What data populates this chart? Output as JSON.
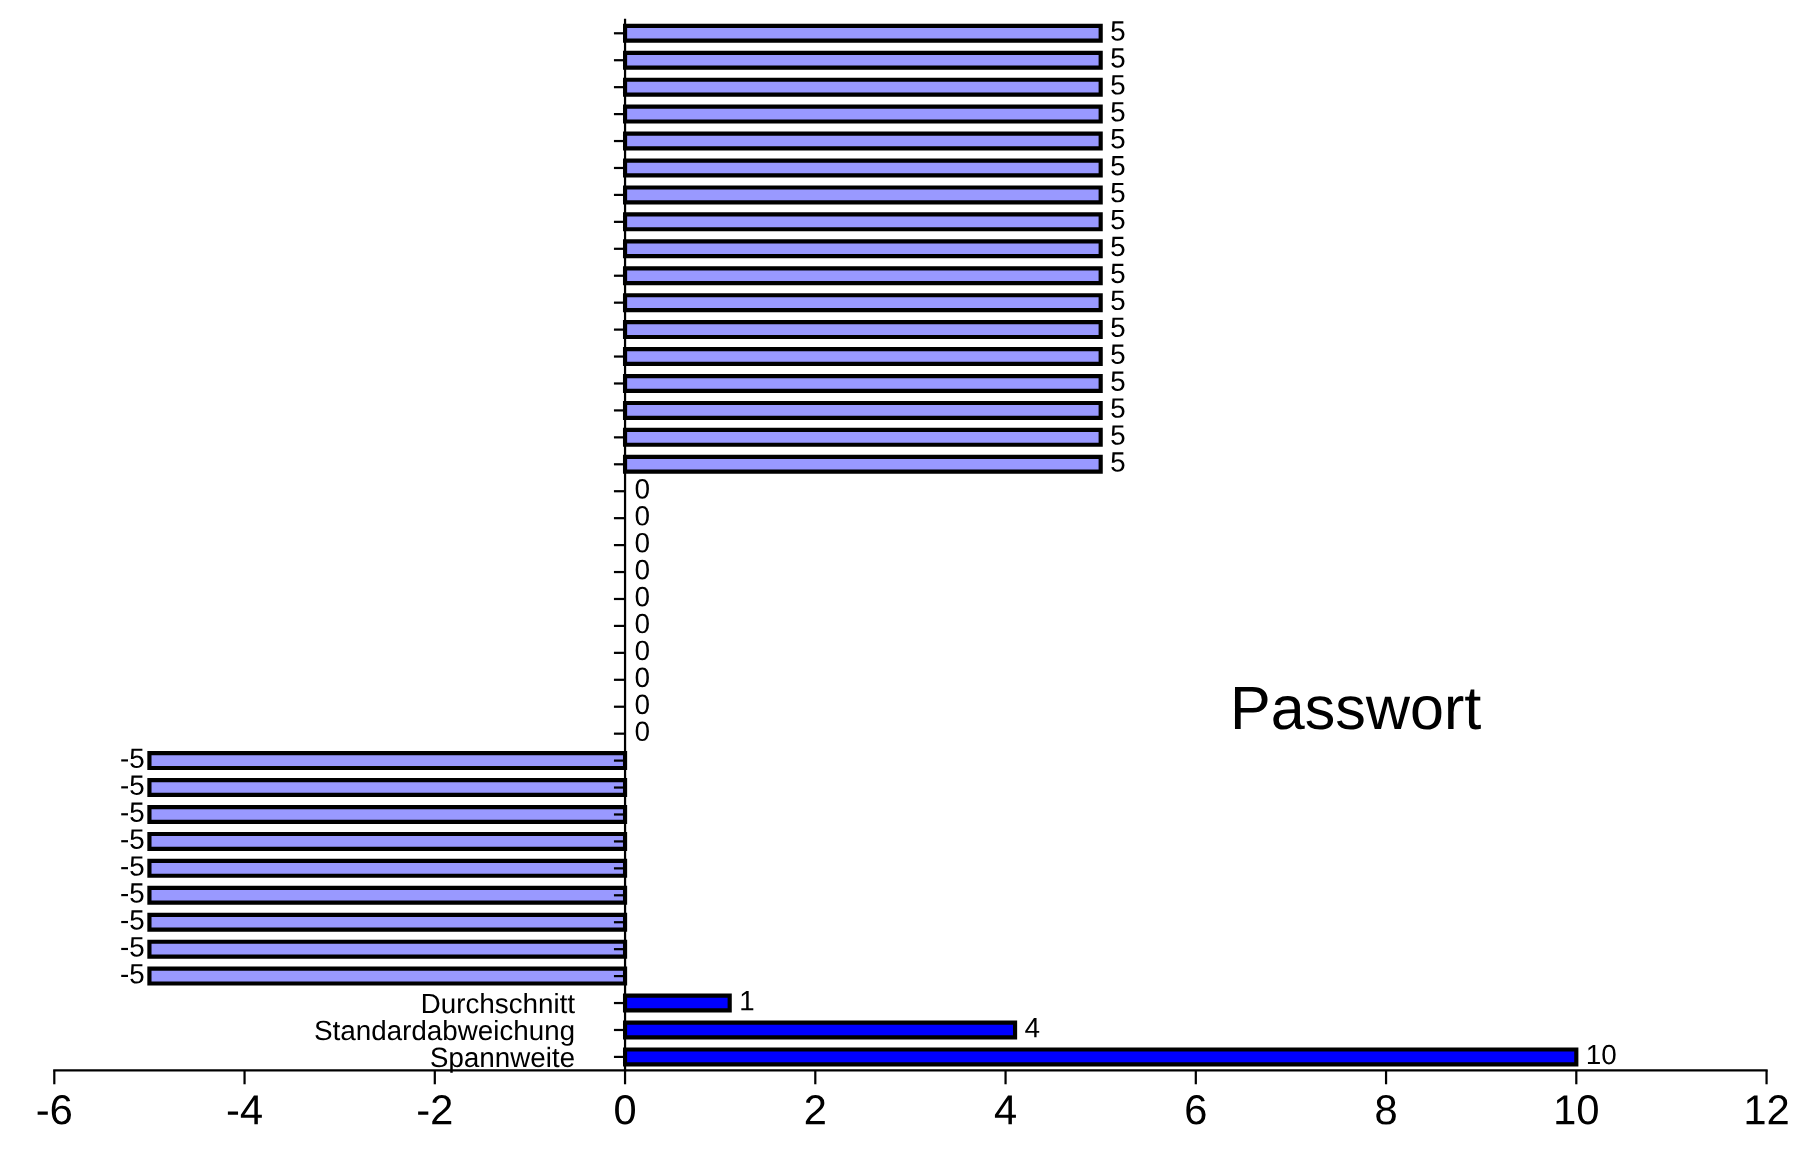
{
  "chart_data": {
    "type": "bar",
    "orientation": "horizontal",
    "categories": [
      null,
      null,
      null,
      null,
      null,
      null,
      null,
      null,
      null,
      null,
      null,
      null,
      null,
      null,
      null,
      null,
      null,
      null,
      null,
      null,
      null,
      null,
      null,
      null,
      null,
      null,
      null,
      null,
      null,
      null,
      null,
      null,
      null,
      null,
      null,
      null,
      "Durchschnitt",
      "Standardabweichung",
      "Spannweite"
    ],
    "values": [
      5,
      5,
      5,
      5,
      5,
      5,
      5,
      5,
      5,
      5,
      5,
      5,
      5,
      5,
      5,
      5,
      5,
      0,
      0,
      0,
      0,
      0,
      0,
      0,
      0,
      0,
      0,
      -5,
      -5,
      -5,
      -5,
      -5,
      -5,
      -5,
      -5,
      -5,
      1.1,
      4.1,
      10
    ],
    "value_labels": [
      "5",
      "5",
      "5",
      "5",
      "5",
      "5",
      "5",
      "5",
      "5",
      "5",
      "5",
      "5",
      "5",
      "5",
      "5",
      "5",
      "5",
      "0",
      "0",
      "0",
      "0",
      "0",
      "0",
      "0",
      "0",
      "0",
      "0",
      "-5",
      "-5",
      "-5",
      "-5",
      "-5",
      "-5",
      "-5",
      "-5",
      "-5",
      "1",
      "4",
      "10"
    ],
    "colors": [
      "#9999ff",
      "#9999ff",
      "#9999ff",
      "#9999ff",
      "#9999ff",
      "#9999ff",
      "#9999ff",
      "#9999ff",
      "#9999ff",
      "#9999ff",
      "#9999ff",
      "#9999ff",
      "#9999ff",
      "#9999ff",
      "#9999ff",
      "#9999ff",
      "#9999ff",
      "#9999ff",
      "#9999ff",
      "#9999ff",
      "#9999ff",
      "#9999ff",
      "#9999ff",
      "#9999ff",
      "#9999ff",
      "#9999ff",
      "#9999ff",
      "#9999ff",
      "#9999ff",
      "#9999ff",
      "#9999ff",
      "#9999ff",
      "#9999ff",
      "#9999ff",
      "#9999ff",
      "#9999ff",
      "#0000ff",
      "#0000ff",
      "#0000ff"
    ],
    "xlim": [
      -6,
      12
    ],
    "xticks": [
      -6,
      -4,
      -2,
      0,
      2,
      4,
      6,
      8,
      10,
      12
    ],
    "annotations": [
      "Passwort"
    ],
    "legend": false,
    "grid": false
  }
}
